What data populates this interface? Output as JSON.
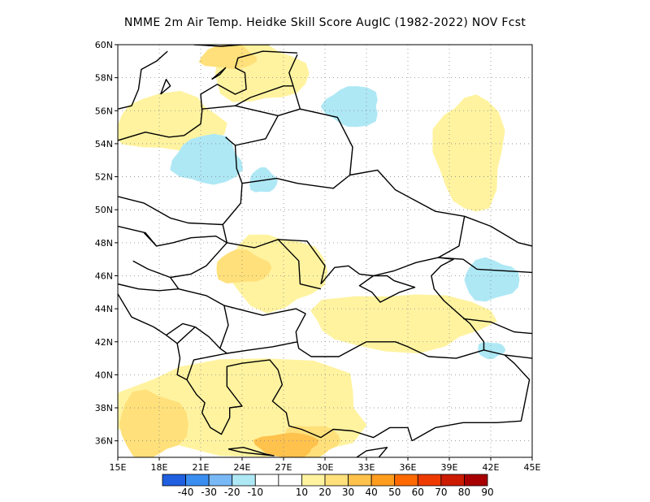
{
  "title": "NMME  2m Air Temp. Heidke Skill Score AugIC (1982-2022) NOV Fcst",
  "chart_data": {
    "type": "map",
    "x_axis": {
      "ticks": [
        "15E",
        "18E",
        "21E",
        "24E",
        "27E",
        "30E",
        "33E",
        "36E",
        "39E",
        "42E",
        "45E"
      ],
      "range": [
        15,
        45
      ]
    },
    "y_axis": {
      "ticks": [
        "36N",
        "38N",
        "40N",
        "42N",
        "44N",
        "46N",
        "48N",
        "50N",
        "52N",
        "54N",
        "56N",
        "58N",
        "60N"
      ],
      "range": [
        35,
        60
      ]
    },
    "grid": true,
    "colorbar": {
      "colors": [
        "#1f5fe0",
        "#3a8ef0",
        "#78b8f5",
        "#aee8f5",
        "#ffffff",
        "#ffffff",
        "#fff3a0",
        "#ffe07a",
        "#ffc24d",
        "#ff9d1e",
        "#ff6a00",
        "#ee3a00",
        "#cc1b00",
        "#a80000"
      ],
      "labels": [
        "-40",
        "-30",
        "-20",
        "-10",
        "10",
        "20",
        "30",
        "40",
        "50",
        "60",
        "70",
        "80",
        "90"
      ]
    },
    "regions": [
      {
        "level": "10",
        "lon": [
          15,
          22.5
        ],
        "lat": [
          53.5,
          57
        ],
        "shape": "band"
      },
      {
        "level": "10",
        "lon": [
          22,
          28.5
        ],
        "lat": [
          56.5,
          60
        ],
        "shape": "band"
      },
      {
        "level": "10",
        "lon": [
          23,
          30
        ],
        "lat": [
          44,
          48.5
        ],
        "shape": "blob"
      },
      {
        "level": "10",
        "lon": [
          29,
          42
        ],
        "lat": [
          41.5,
          45
        ],
        "shape": "blob"
      },
      {
        "level": "10",
        "lon": [
          38,
          43
        ],
        "lat": [
          50,
          57
        ],
        "shape": "blob"
      },
      {
        "level": "10",
        "lon": [
          15,
          33
        ],
        "lat": [
          35,
          41
        ],
        "shape": "band"
      },
      {
        "level": "20",
        "lon": [
          21,
          25
        ],
        "lat": [
          58.5,
          60
        ],
        "shape": "blob"
      },
      {
        "level": "20",
        "lon": [
          22,
          26
        ],
        "lat": [
          45.5,
          47.5
        ],
        "shape": "blob"
      },
      {
        "level": "20",
        "lon": [
          15,
          20
        ],
        "lat": [
          35,
          39
        ],
        "shape": "blob"
      },
      {
        "level": "20",
        "lon": [
          27,
          31
        ],
        "lat": [
          35,
          37
        ],
        "shape": "blob"
      },
      {
        "level": "30",
        "lon": [
          25,
          29.5
        ],
        "lat": [
          35,
          36.5
        ],
        "shape": "blob"
      },
      {
        "level": "-10",
        "lon": [
          30,
          34
        ],
        "lat": [
          55,
          57.5
        ],
        "shape": "blob"
      },
      {
        "level": "-10",
        "lon": [
          19,
          24
        ],
        "lat": [
          51.5,
          54.5
        ],
        "shape": "blob"
      },
      {
        "level": "-10",
        "lon": [
          24.5,
          26.5
        ],
        "lat": [
          51,
          52.5
        ],
        "shape": "blob"
      },
      {
        "level": "-10",
        "lon": [
          40,
          44
        ],
        "lat": [
          44.5,
          47
        ],
        "shape": "blob"
      },
      {
        "level": "-10",
        "lon": [
          41,
          43
        ],
        "lat": [
          41,
          42
        ],
        "shape": "blob"
      }
    ]
  }
}
